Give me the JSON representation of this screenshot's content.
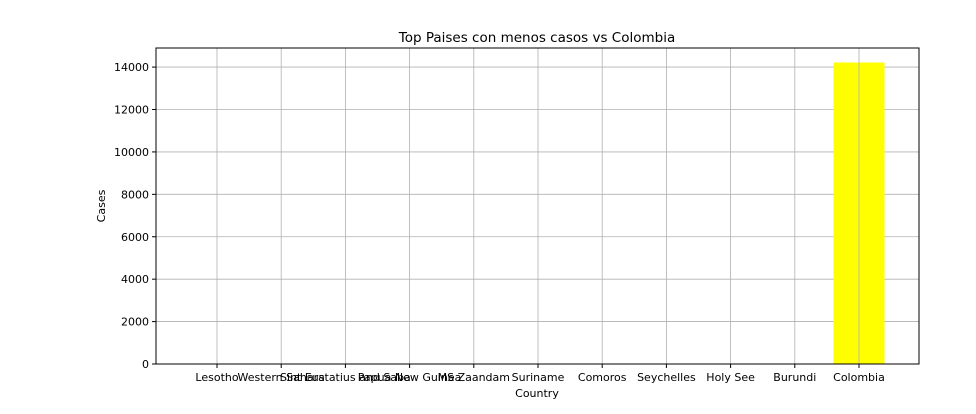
{
  "chart_data": {
    "type": "bar",
    "title": "Top Paises con menos casos vs Colombia",
    "xlabel": "Country",
    "ylabel": "Cases",
    "categories": [
      "Lesotho",
      "Western Sahara",
      "Sint Eustatius and Saba",
      "Papua New Guinea",
      "MS Zaandam",
      "Suriname",
      "Comoros",
      "Seychelles",
      "Holy See",
      "Burundi",
      "Colombia"
    ],
    "values": [
      1,
      6,
      6,
      8,
      9,
      10,
      11,
      11,
      12,
      15,
      14216
    ],
    "ylim": [
      0,
      14900
    ],
    "yticks": [
      0,
      2000,
      4000,
      6000,
      8000,
      10000,
      12000,
      14000
    ],
    "grid": true,
    "bar_color": "#ffff00"
  }
}
